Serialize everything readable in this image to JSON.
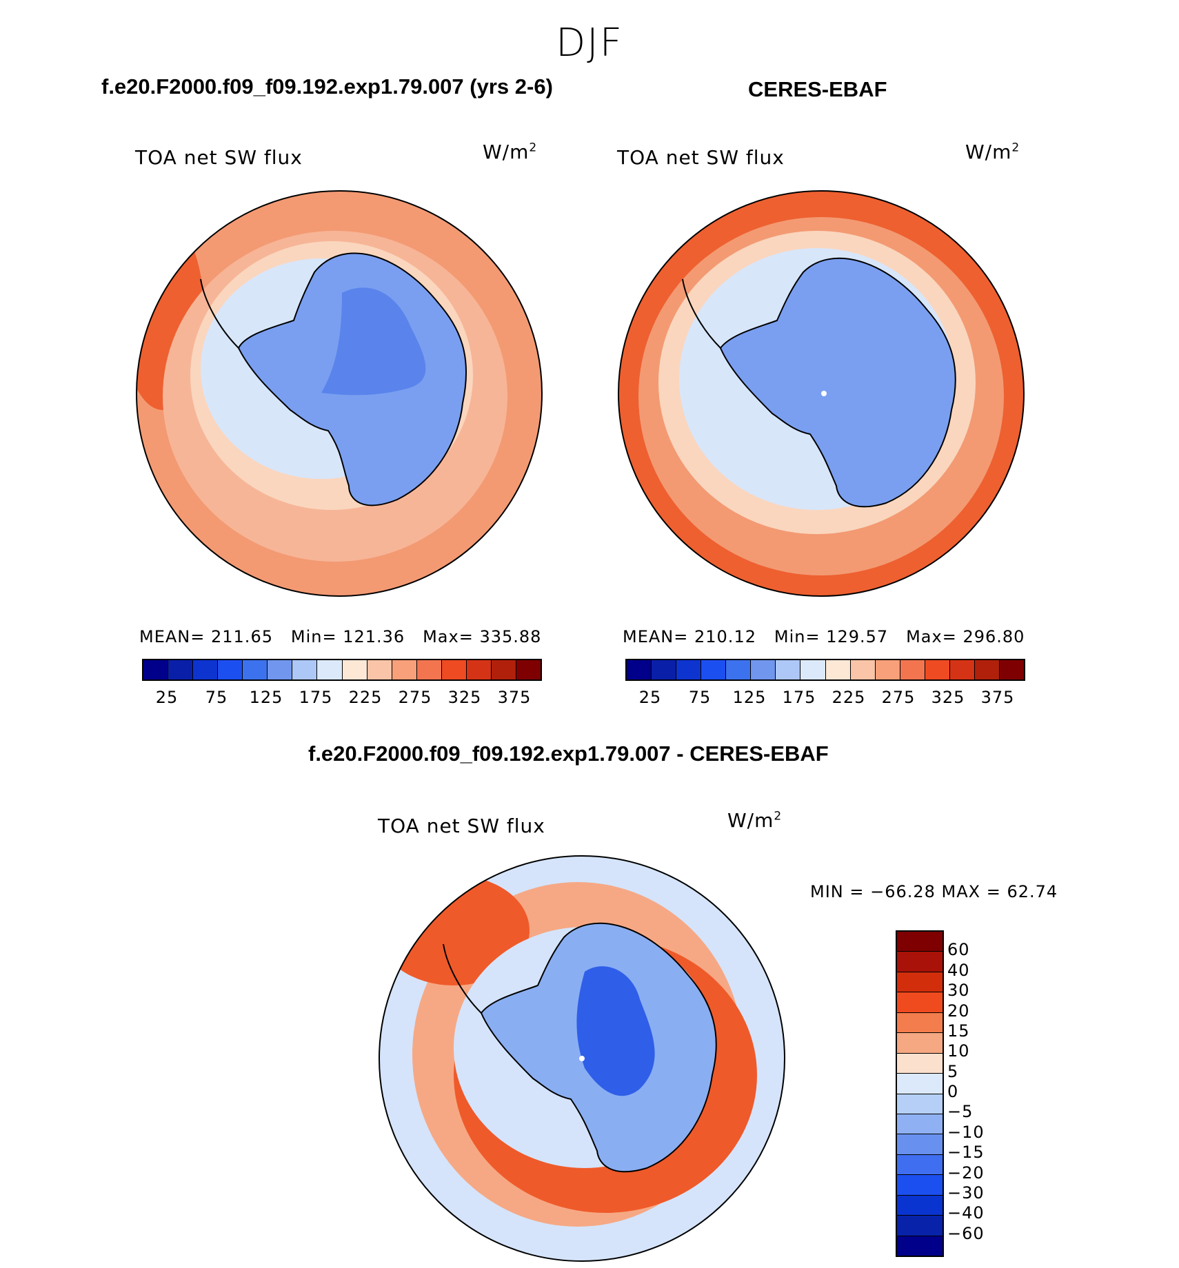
{
  "season_title": "DJF",
  "panels": {
    "model": {
      "title": "f.e20.F2000.f09_f09.192.exp1.79.007 (yrs 2-6)",
      "variable": "TOA net SW flux",
      "units_base": "W/m",
      "units_exp": "2",
      "stats": {
        "mean_label": "MEAN=",
        "mean": "211.65",
        "min_label": "Min=",
        "min": "121.36",
        "max_label": "Max=",
        "max": "335.88"
      }
    },
    "obs": {
      "title": "CERES-EBAF",
      "variable": "TOA net SW flux",
      "units_base": "W/m",
      "units_exp": "2",
      "stats": {
        "mean_label": "MEAN=",
        "mean": "210.12",
        "min_label": "Min=",
        "min": "129.57",
        "max_label": "Max=",
        "max": "296.80"
      }
    },
    "diff": {
      "title": "f.e20.F2000.f09_f09.192.exp1.79.007 - CERES-EBAF",
      "variable": "TOA net SW flux",
      "units_base": "W/m",
      "units_exp": "2",
      "minmax_text": "MIN = −66.28 MAX =   62.74"
    }
  },
  "colorbars": {
    "flux": {
      "colors": [
        "#00008b",
        "#0a1fa8",
        "#0e34d0",
        "#1c4ff0",
        "#3d72ee",
        "#7096ee",
        "#adc7f6",
        "#dbe9fb",
        "#fde8d6",
        "#f9c4a8",
        "#f7a07a",
        "#f27550",
        "#ee4b23",
        "#d53315",
        "#b0200b",
        "#7f0000"
      ],
      "tick_labels": [
        "25",
        "75",
        "125",
        "175",
        "225",
        "275",
        "325",
        "375"
      ]
    },
    "diff": {
      "colors": [
        "#7f0000",
        "#a81208",
        "#d22e0c",
        "#f04a1f",
        "#f37d4d",
        "#f5a882",
        "#fbe1cd",
        "#dbe9fb",
        "#b5cff7",
        "#8fb1f3",
        "#6890ee",
        "#3f6ff0",
        "#1c4ff0",
        "#0a34cf",
        "#0822aa",
        "#00008b"
      ],
      "tick_labels": [
        "60",
        "40",
        "30",
        "20",
        "15",
        "10",
        "5",
        "0",
        "−5",
        "−10",
        "−15",
        "−20",
        "−30",
        "−40",
        "−60"
      ]
    }
  },
  "map_colors": {
    "flux_ocean_outer": "#f39a73",
    "flux_ocean_mid": "#f7b597",
    "flux_ocean_inner": "#fad6be",
    "flux_seaice": "#d8e6fa",
    "flux_land": "#7a9ff0",
    "flux_land_deep": "#5a84ec",
    "flux_hot": "#ee6030",
    "diff_ocean": "#d5e4fa",
    "diff_pos": "#f6a884",
    "diff_strong_pos": "#ef5a2a",
    "diff_land": "#8aaef2",
    "diff_deep_neg": "#2f5fe8",
    "coastline": "#000000"
  }
}
